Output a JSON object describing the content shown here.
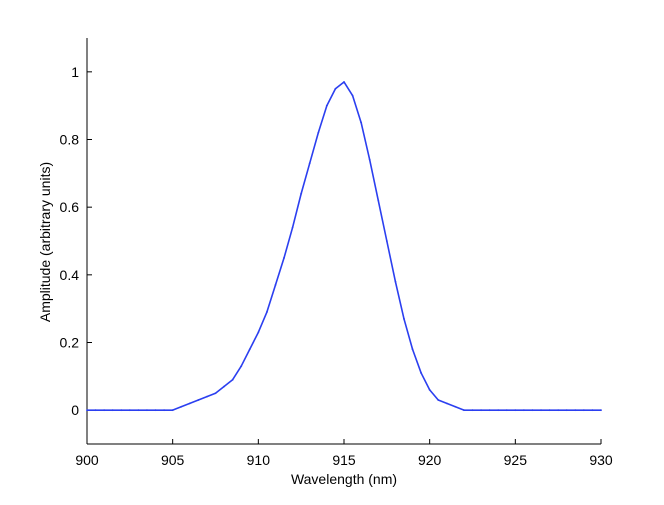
{
  "chart_data": {
    "type": "line",
    "title": "",
    "xlabel": "Wavelength (nm)",
    "ylabel": "Amplitude (arbitrary units)",
    "xlim": [
      900,
      930
    ],
    "ylim": [
      -0.1,
      1.1
    ],
    "xticks": [
      900,
      905,
      910,
      915,
      920,
      925,
      930
    ],
    "yticks": [
      0,
      0.2,
      0.4,
      0.6,
      0.8,
      1
    ],
    "xtick_labels": [
      "900",
      "905",
      "910",
      "915",
      "920",
      "925",
      "930"
    ],
    "ytick_labels": [
      "0",
      "0.2",
      "0.4",
      "0.6",
      "0.8",
      "1"
    ],
    "grid": false,
    "legend": "none",
    "series": [
      {
        "color": "#2b3ff0",
        "x": [
          900.0,
          900.5,
          901.0,
          901.5,
          902.0,
          902.5,
          903.0,
          903.5,
          904.0,
          904.5,
          905.0,
          905.5,
          906.0,
          906.5,
          907.0,
          907.5,
          908.0,
          908.5,
          909.0,
          909.5,
          910.0,
          910.5,
          911.0,
          911.5,
          912.0,
          912.5,
          913.0,
          913.5,
          914.0,
          914.5,
          915.0,
          915.5,
          916.0,
          916.5,
          917.0,
          917.5,
          918.0,
          918.5,
          919.0,
          919.5,
          920.0,
          920.5,
          921.0,
          921.5,
          922.0,
          922.5,
          923.0,
          923.5,
          924.0,
          924.5,
          925.0,
          925.5,
          926.0,
          926.5,
          927.0,
          927.5,
          928.0,
          928.5,
          929.0,
          929.5,
          930.0
        ],
        "y": [
          0.0,
          0.0,
          0.0,
          0.0,
          0.0,
          0.0,
          0.0,
          0.0,
          0.0,
          0.0,
          0.0,
          0.01,
          0.02,
          0.03,
          0.04,
          0.05,
          0.07,
          0.09,
          0.13,
          0.18,
          0.23,
          0.29,
          0.37,
          0.45,
          0.54,
          0.64,
          0.73,
          0.82,
          0.9,
          0.95,
          0.97,
          0.93,
          0.85,
          0.74,
          0.62,
          0.5,
          0.38,
          0.27,
          0.18,
          0.11,
          0.06,
          0.03,
          0.02,
          0.01,
          0.0,
          0.0,
          0.0,
          0.0,
          0.0,
          0.0,
          0.0,
          0.0,
          0.0,
          0.0,
          0.0,
          0.0,
          0.0,
          0.0,
          0.0,
          0.0,
          0.0
        ]
      }
    ]
  }
}
